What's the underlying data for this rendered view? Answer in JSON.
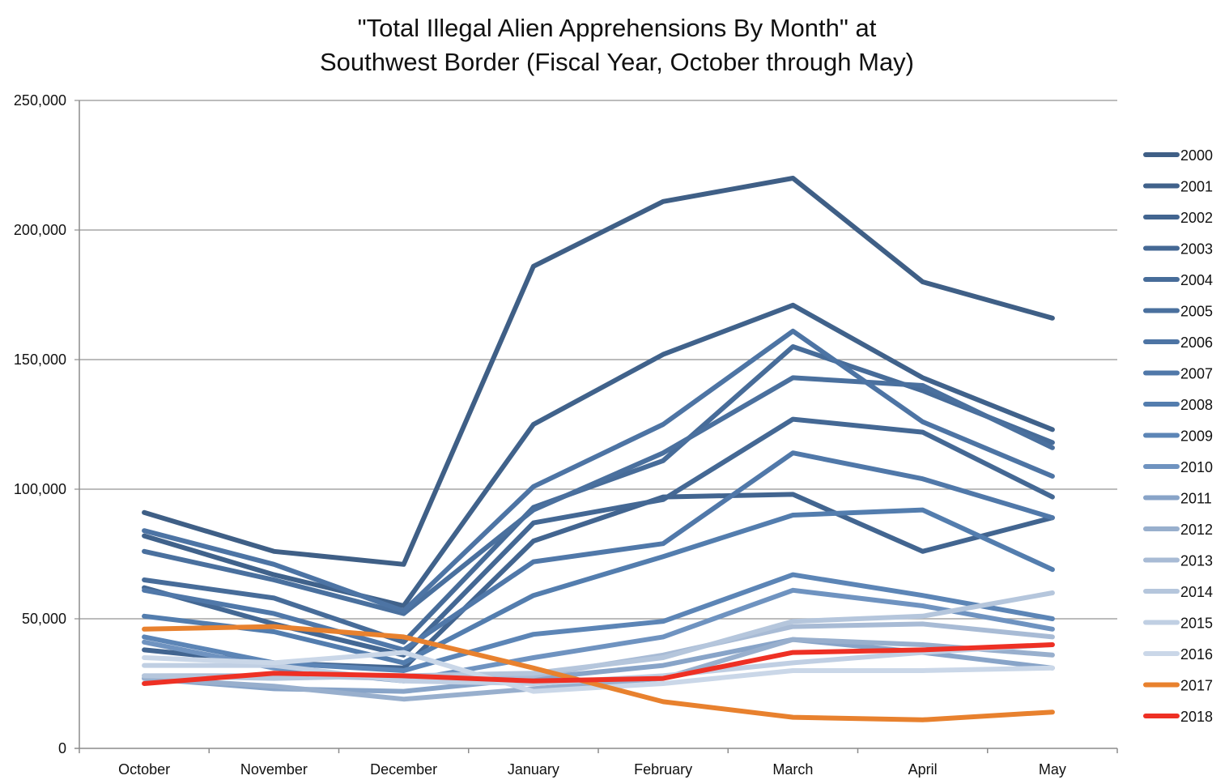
{
  "chart_data": {
    "type": "line",
    "title": [
      "\"Total Illegal Alien Apprehensions By Month\" at",
      "Southwest Border (Fiscal Year, October through May)"
    ],
    "xlabel": "",
    "ylabel": "",
    "categories": [
      "October",
      "November",
      "December",
      "January",
      "February",
      "March",
      "April",
      "May"
    ],
    "ylim": [
      0,
      250000
    ],
    "yticks": [
      0,
      50000,
      100000,
      150000,
      200000,
      250000
    ],
    "ytick_labels": [
      "0",
      "50,000",
      "100,000",
      "150,000",
      "200,000",
      "250,000"
    ],
    "grid": true,
    "legend_position": "right",
    "series": [
      {
        "name": "2000",
        "color": "#3f5f86",
        "values": [
          91000,
          76000,
          71000,
          186000,
          211000,
          220000,
          180000,
          166000
        ]
      },
      {
        "name": "2001",
        "color": "#40628b",
        "values": [
          82000,
          67000,
          55000,
          125000,
          152000,
          171000,
          143000,
          123000
        ]
      },
      {
        "name": "2002",
        "color": "#426590",
        "values": [
          38000,
          33000,
          31000,
          80000,
          97000,
          98000,
          76000,
          89000
        ]
      },
      {
        "name": "2003",
        "color": "#446894",
        "values": [
          62000,
          48000,
          36000,
          87000,
          96000,
          127000,
          122000,
          97000
        ]
      },
      {
        "name": "2004",
        "color": "#476c99",
        "values": [
          65000,
          58000,
          41000,
          93000,
          111000,
          155000,
          138000,
          118000
        ]
      },
      {
        "name": "2005",
        "color": "#4a709e",
        "values": [
          76000,
          65000,
          52000,
          92000,
          114000,
          143000,
          140000,
          116000
        ]
      },
      {
        "name": "2006",
        "color": "#4d74a4",
        "values": [
          84000,
          71000,
          53000,
          101000,
          125000,
          161000,
          126000,
          105000
        ]
      },
      {
        "name": "2007",
        "color": "#5078a9",
        "values": [
          61000,
          52000,
          38000,
          72000,
          79000,
          114000,
          104000,
          89000
        ]
      },
      {
        "name": "2008",
        "color": "#537dae",
        "values": [
          51000,
          45000,
          33000,
          59000,
          74000,
          90000,
          92000,
          69000
        ]
      },
      {
        "name": "2009",
        "color": "#5c85b6",
        "values": [
          43000,
          33000,
          30000,
          44000,
          49000,
          67000,
          59000,
          50000
        ]
      },
      {
        "name": "2010",
        "color": "#6f93c0",
        "values": [
          41000,
          31000,
          26000,
          35000,
          43000,
          61000,
          55000,
          46000
        ]
      },
      {
        "name": "2011",
        "color": "#88a4c8",
        "values": [
          27000,
          23000,
          22000,
          27000,
          32000,
          42000,
          37000,
          31000
        ]
      },
      {
        "name": "2012",
        "color": "#98afcd",
        "values": [
          27000,
          24000,
          19000,
          23000,
          27000,
          42000,
          40000,
          36000
        ]
      },
      {
        "name": "2013",
        "color": "#a8bbd5",
        "values": [
          28000,
          28000,
          27000,
          28000,
          36000,
          47000,
          48000,
          43000
        ]
      },
      {
        "name": "2014",
        "color": "#b5c6dc",
        "values": [
          28000,
          27000,
          28000,
          29000,
          35000,
          49000,
          51000,
          60000
        ]
      },
      {
        "name": "2015",
        "color": "#c0cfe3",
        "values": [
          32000,
          32000,
          26000,
          25000,
          28000,
          33000,
          37000,
          40000
        ]
      },
      {
        "name": "2016",
        "color": "#cad7e8",
        "values": [
          35000,
          33000,
          37000,
          22000,
          25000,
          30000,
          30000,
          31000
        ]
      },
      {
        "name": "2017",
        "color": "#e8812e",
        "values": [
          46000,
          47000,
          43000,
          31000,
          18000,
          12000,
          11000,
          14000
        ]
      },
      {
        "name": "2018",
        "color": "#ee3024",
        "values": [
          25000,
          29000,
          28000,
          26000,
          27000,
          37000,
          38000,
          40000
        ]
      }
    ]
  }
}
